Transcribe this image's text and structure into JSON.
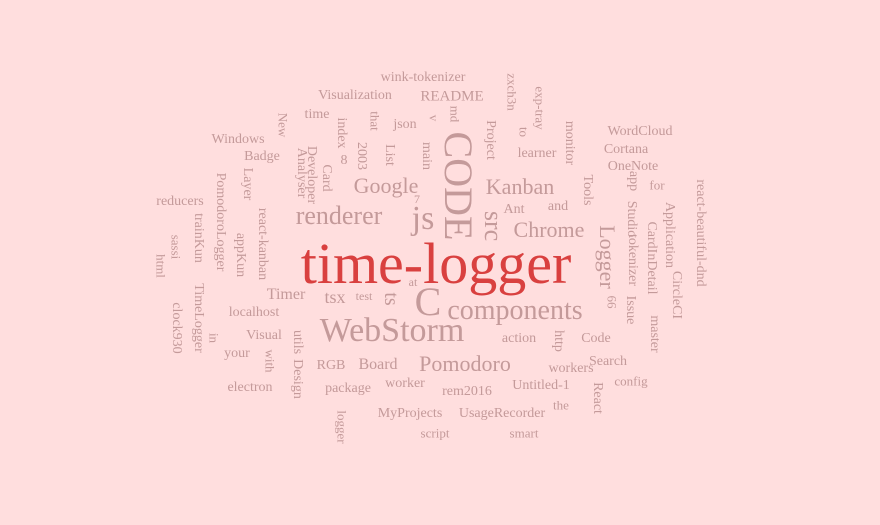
{
  "palette": {
    "background": "#ffdede",
    "primary_word": "#d9403f",
    "secondary_words": "#c49a9a"
  },
  "wordcloud": {
    "words": [
      "time-logger",
      "WebStorm",
      "components",
      "C",
      "CODE",
      "js",
      "renderer",
      "Kanban",
      "Google",
      "Chrome",
      "src",
      "Logger",
      "Pomodoro",
      "ts",
      "tsx",
      "Timer",
      "Board",
      "RGB",
      "localhost",
      "Visual",
      "action",
      "Code",
      "Search",
      "workers",
      "worker",
      "package",
      "rem2016",
      "Untitled-1",
      "UsageRecorder",
      "MyProjects",
      "script",
      "smart",
      "the",
      "config",
      "electron",
      "your",
      "Design",
      "utils",
      "with",
      "in",
      "TimeLogger",
      "clock930",
      "trainKun",
      "appKun",
      "react-kanban",
      "Layer",
      "PomodoroLogger",
      "Badge",
      "Windows",
      "reducers",
      "html",
      "sassi",
      "New",
      "Analyser",
      "Developer",
      "Card",
      "time",
      "Visualization",
      "index",
      "2003",
      "8",
      "that",
      "json",
      "List",
      "main",
      "v",
      "README",
      "md",
      "wink-tokenizer",
      "zxch3n",
      "exp-tray",
      "Project",
      "to",
      "learner",
      "monitor",
      "WordCloud",
      "Cortana",
      "OneNote",
      "for",
      "react-beautiful-dnd",
      "Application",
      "CircleCI",
      "master",
      "CardInDetail",
      "Studio",
      "app",
      "Tools",
      "and",
      "Ant",
      "tokenizer",
      "Issue",
      "66",
      "React",
      "http",
      "test",
      "at",
      "7",
      "logger"
    ]
  }
}
